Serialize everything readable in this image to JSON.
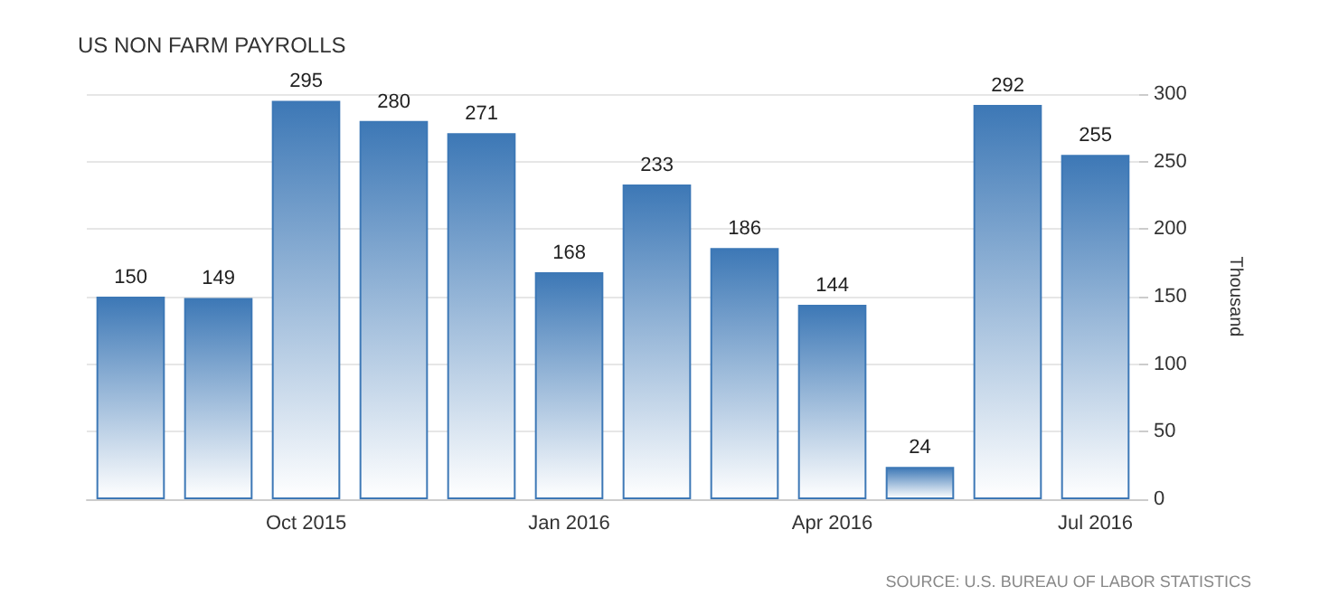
{
  "chart_data": {
    "type": "bar",
    "title": "US NON FARM PAYROLLS",
    "ylabel": "Thousand",
    "categories": [
      null,
      null,
      "Oct 2015",
      null,
      null,
      "Jan 2016",
      null,
      null,
      "Apr 2016",
      null,
      null,
      "Jul 2016"
    ],
    "values": [
      150,
      149,
      295,
      280,
      271,
      168,
      233,
      186,
      144,
      24,
      292,
      255
    ],
    "color": "#3d78b6",
    "ylim": [
      0,
      300
    ],
    "yticks": [
      0,
      50,
      100,
      150,
      200,
      250,
      300
    ],
    "grid": "y",
    "data_labels": true,
    "annotations": [
      "SOURCE: U.S. BUREAU OF LABOR STATISTICS"
    ]
  }
}
